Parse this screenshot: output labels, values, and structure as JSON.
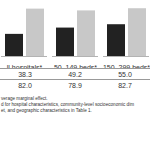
{
  "chart_data": {
    "type": "bar",
    "categories": [
      "ll hospitals*",
      "50–149 beds*",
      "150–299 beds*"
    ],
    "series": [
      {
        "color": "#222222",
        "values": [
          38.3,
          49.2,
          55.0
        ],
        "value_labels": [
          "38.3",
          "49.2",
          "55.0"
        ]
      },
      {
        "color": "#c8c8c8",
        "values": [
          82.0,
          78.9,
          82.7
        ],
        "value_labels": [
          "82.0",
          "78.9",
          "82.7"
        ]
      }
    ],
    "ylim": [
      0,
      90
    ],
    "yticks": [],
    "tick_labels": "x",
    "grid": false,
    "caption": [
      "verage marginal effect.",
      "d for hospital characteristics, community-level socioeconomic dim",
      "et, and geographic characteristics in Table 1."
    ]
  }
}
